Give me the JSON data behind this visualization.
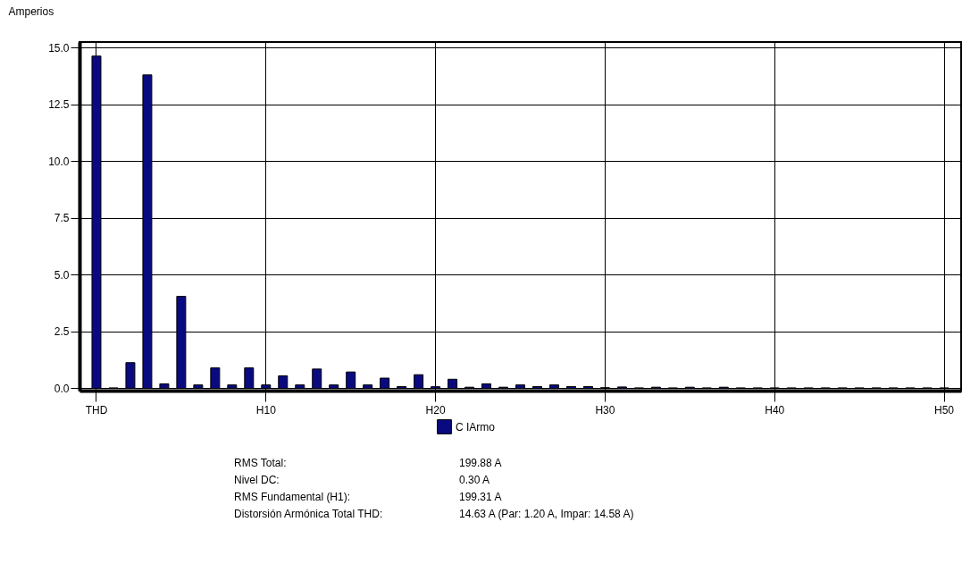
{
  "chart_data": {
    "type": "bar",
    "ylabel": "Amperios",
    "categories": [
      "THD",
      null,
      null,
      null,
      null,
      null,
      null,
      null,
      null,
      null,
      "H10",
      null,
      null,
      null,
      null,
      null,
      null,
      null,
      null,
      null,
      "H20",
      null,
      null,
      null,
      null,
      null,
      null,
      null,
      null,
      null,
      "H30",
      null,
      null,
      null,
      null,
      null,
      null,
      null,
      null,
      null,
      "H40",
      null,
      null,
      null,
      null,
      null,
      null,
      null,
      null,
      null,
      "H50"
    ],
    "series": [
      {
        "name": "C IArmo",
        "color": "#0a0a80",
        "values": [
          14.63,
          0.02,
          1.13,
          13.8,
          0.2,
          4.05,
          0.15,
          0.9,
          0.15,
          0.9,
          0.15,
          0.55,
          0.15,
          0.85,
          0.15,
          0.72,
          0.15,
          0.45,
          0.08,
          0.6,
          0.07,
          0.4,
          0.05,
          0.2,
          0.05,
          0.15,
          0.08,
          0.15,
          0.08,
          0.08,
          0.03,
          0.06,
          0.02,
          0.05,
          0.02,
          0.05,
          0.02,
          0.05,
          0.02,
          0.02,
          0.02,
          0.02,
          0.02,
          0.02,
          0.02,
          0.02,
          0.02,
          0.02,
          0.02,
          0.02,
          0.02
        ]
      }
    ],
    "ylim": [
      -0.1,
      15.25
    ],
    "yticks": [
      {
        "value": 0,
        "label": "0.0"
      },
      2.5,
      {
        "value": 5,
        "label": "5.0"
      },
      7.5,
      {
        "value": 10,
        "label": "10.0"
      },
      12.5,
      {
        "value": 15,
        "label": "15.0"
      }
    ],
    "grid": true,
    "legend": "bottom",
    "annotations": [
      "RMS Total:",
      "199.88 A",
      "Nivel DC:",
      "0.30 A",
      "RMS Fundamental (H1):",
      "199.31 A",
      "Distorsión Armónica Total THD:",
      "14.63 A (Par: 1.20 A, Impar: 14.58 A)"
    ]
  }
}
